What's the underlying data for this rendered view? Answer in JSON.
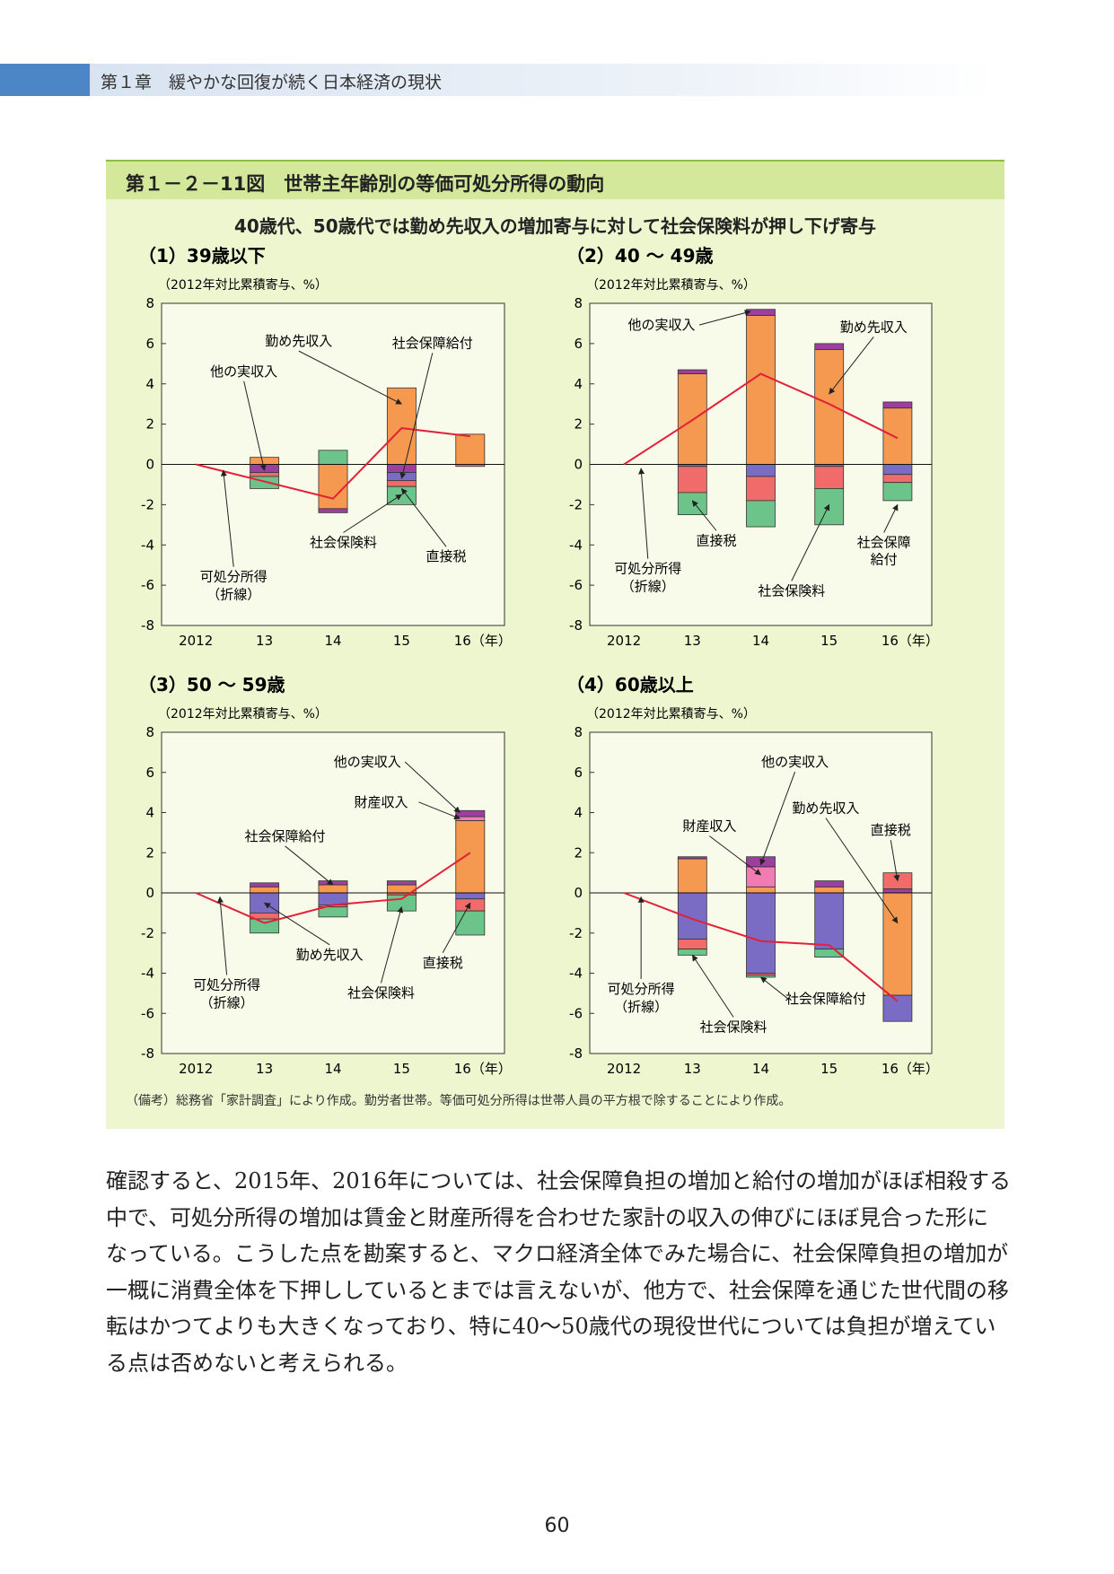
{
  "header": {
    "title": "第１章　緩やかな回復が続く日本経済の現状"
  },
  "figure": {
    "title": "第１－２－11図　世帯主年齢別の等価可処分所得の動向",
    "subtitle": "40歳代、50歳代では勤め先収入の増加寄与に対して社会保険料が押し下げ寄与",
    "note": "（備考）総務省「家計調査」により作成。勤労者世帯。等価可処分所得は世帯人員の平方根で除することにより作成。"
  },
  "chart_data": [
    {
      "type": "bar",
      "title": "（1）39歳以下",
      "y_label": "（2012年対比累積寄与、%）",
      "categories": [
        "2012",
        "13",
        "14",
        "15",
        "16（年）"
      ],
      "ylim": [
        -8,
        8
      ],
      "yticks": [
        -8,
        -6,
        -4,
        -2,
        0,
        2,
        4,
        6,
        8
      ],
      "stacked": true,
      "series": [
        {
          "name": "勤め先収入",
          "color": "#f4994f",
          "values": [
            0,
            0.35,
            -2.2,
            3.8,
            1.5
          ]
        },
        {
          "name": "他の実収入",
          "color": "#9c3f9e",
          "values": [
            0,
            -0.4,
            -0.2,
            -0.4,
            0
          ]
        },
        {
          "name": "社会保障給付",
          "color": "#7a6cc4",
          "values": [
            0,
            0,
            0,
            -0.4,
            0
          ]
        },
        {
          "name": "直接税",
          "color": "#f26b6b",
          "values": [
            0,
            -0.2,
            0,
            -0.3,
            -0.1
          ]
        },
        {
          "name": "社会保険料",
          "color": "#6cc48a",
          "values": [
            0,
            -0.6,
            0.7,
            -0.9,
            0
          ]
        },
        {
          "name": "可処分所得",
          "note": "（折線）",
          "type": "line",
          "color": "#e3203a",
          "values": [
            0,
            -0.85,
            -1.7,
            1.8,
            1.4
          ]
        }
      ]
    },
    {
      "type": "bar",
      "title": "（2）40 ～ 49歳",
      "y_label": "（2012年対比累積寄与、%）",
      "categories": [
        "2012",
        "13",
        "14",
        "15",
        "16（年）"
      ],
      "ylim": [
        -8,
        8
      ],
      "yticks": [
        -8,
        -6,
        -4,
        -2,
        0,
        2,
        4,
        6,
        8
      ],
      "stacked": true,
      "series": [
        {
          "name": "勤め先収入",
          "color": "#f4994f",
          "values": [
            0,
            4.5,
            7.4,
            5.7,
            2.8
          ]
        },
        {
          "name": "他の実収入",
          "color": "#9c3f9e",
          "values": [
            0,
            0.2,
            0.3,
            0.3,
            0.3
          ]
        },
        {
          "name": "社会保障給付",
          "color": "#7a6cc4",
          "values": [
            0,
            -0.1,
            -0.6,
            -0.1,
            -0.5
          ]
        },
        {
          "name": "直接税",
          "color": "#f26b6b",
          "values": [
            0,
            -1.3,
            -1.2,
            -1.1,
            -0.4
          ]
        },
        {
          "name": "社会保険料",
          "color": "#6cc48a",
          "values": [
            0,
            -1.1,
            -1.3,
            -1.8,
            -0.9
          ]
        },
        {
          "name": "可処分所得",
          "note": "（折線）",
          "type": "line",
          "color": "#e3203a",
          "values": [
            0,
            2.2,
            4.5,
            3.0,
            1.3
          ]
        }
      ]
    },
    {
      "type": "bar",
      "title": "（3）50 ～ 59歳",
      "y_label": "（2012年対比累積寄与、%）",
      "categories": [
        "2012",
        "13",
        "14",
        "15",
        "16（年）"
      ],
      "ylim": [
        -8,
        8
      ],
      "yticks": [
        -8,
        -6,
        -4,
        -2,
        0,
        2,
        4,
        6,
        8
      ],
      "stacked": true,
      "series": [
        {
          "name": "勤め先収入",
          "color": "#f4994f",
          "values": [
            0,
            0.3,
            0.4,
            0.4,
            3.6
          ]
        },
        {
          "name": "財産収入",
          "color": "#f27bb4",
          "values": [
            0,
            0,
            0,
            0,
            0.2
          ]
        },
        {
          "name": "他の実収入",
          "color": "#9c3f9e",
          "values": [
            0,
            0.2,
            0.2,
            0.2,
            0.3
          ]
        },
        {
          "name": "社会保障給付",
          "color": "#7a6cc4",
          "values": [
            0,
            -1.0,
            -0.6,
            0,
            -0.3
          ]
        },
        {
          "name": "直接税",
          "color": "#f26b6b",
          "values": [
            0,
            -0.3,
            -0.1,
            -0.1,
            -0.6
          ]
        },
        {
          "name": "社会保険料",
          "color": "#6cc48a",
          "values": [
            0,
            -0.7,
            -0.5,
            -0.8,
            -1.2
          ]
        },
        {
          "name": "可処分所得",
          "note": "（折線）",
          "type": "line",
          "color": "#e3203a",
          "values": [
            0,
            -1.5,
            -0.6,
            -0.3,
            2.0
          ]
        }
      ]
    },
    {
      "type": "bar",
      "title": "（4）60歳以上",
      "y_label": "（2012年対比累積寄与、%）",
      "categories": [
        "2012",
        "13",
        "14",
        "15",
        "16（年）"
      ],
      "ylim": [
        -8,
        8
      ],
      "yticks": [
        -8,
        -6,
        -4,
        -2,
        0,
        2,
        4,
        6,
        8
      ],
      "stacked": true,
      "series": [
        {
          "name": "勤め先収入",
          "color": "#f4994f",
          "values": [
            0,
            1.7,
            0.3,
            0.3,
            -5.1
          ]
        },
        {
          "name": "財産収入",
          "color": "#f27bb4",
          "values": [
            0,
            0,
            1.0,
            0,
            0
          ]
        },
        {
          "name": "他の実収入",
          "color": "#9c3f9e",
          "values": [
            0,
            0.1,
            0.5,
            0.3,
            0.2
          ]
        },
        {
          "name": "社会保障給付",
          "color": "#7a6cc4",
          "values": [
            0,
            -2.3,
            -4.0,
            -2.8,
            -1.3
          ]
        },
        {
          "name": "直接税",
          "color": "#f26b6b",
          "values": [
            0,
            -0.5,
            -0.1,
            0,
            0.8
          ]
        },
        {
          "name": "社会保険料",
          "color": "#6cc48a",
          "values": [
            0,
            -0.3,
            -0.1,
            -0.4,
            0
          ]
        },
        {
          "name": "可処分所得",
          "note": "（折線）",
          "type": "line",
          "color": "#e3203a",
          "values": [
            0,
            -1.3,
            -2.4,
            -2.6,
            -5.4
          ]
        }
      ]
    }
  ],
  "body": {
    "lines": [
      "確認すると、2015年、2016年については、社会保障負担の増加と給付の増加がほぼ相殺する",
      "中で、可処分所得の増加は賃金と財産所得を合わせた家計の収入の伸びにほぼ見合った形に",
      "なっている。こうした点を勘案すると、マクロ経済全体でみた場合に、社会保障負担の増加が",
      "一概に消費全体を下押ししているとまでは言えないが、他方で、社会保障を通じた世代間の移",
      "転はかつてよりも大きくなっており、特に40～50歳代の現役世代については負担が増えてい",
      "る点は否めないと考えられる。"
    ]
  },
  "page_number": "60"
}
